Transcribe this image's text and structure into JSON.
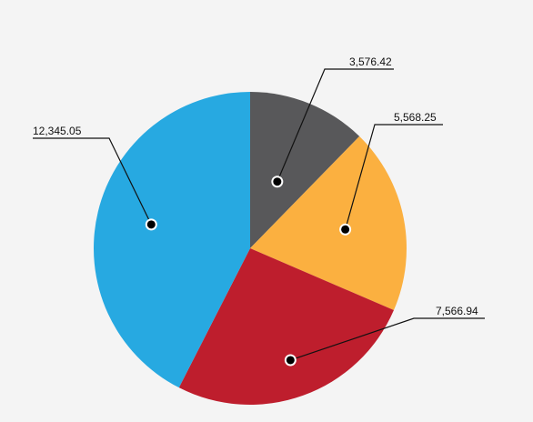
{
  "chart_data": {
    "type": "pie",
    "title": "",
    "start_angle_deg": 0,
    "direction": "clockwise",
    "slices": [
      {
        "label": "3,576.42",
        "value": 3576.42,
        "color": "#58585a"
      },
      {
        "label": "5,568.25",
        "value": 5568.25,
        "color": "#fbb040"
      },
      {
        "label": "7,566.94",
        "value": 7566.94,
        "color": "#be1e2d"
      },
      {
        "label": "12,345.05",
        "value": 12345.05,
        "color": "#27a9e1"
      }
    ],
    "legend": "none",
    "label_style": "leader-line callouts"
  }
}
